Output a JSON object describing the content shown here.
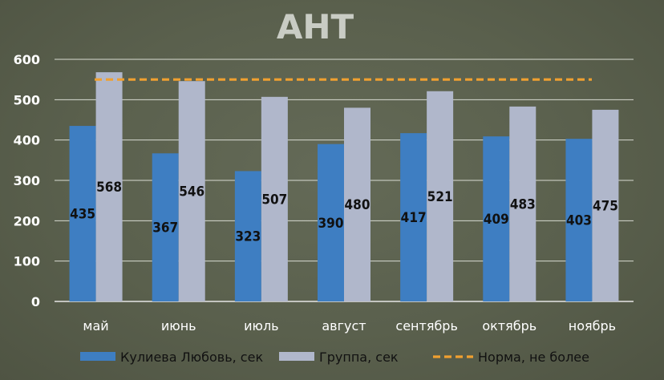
{
  "chart_data": {
    "type": "bar",
    "title": "АНТ",
    "categories": [
      "май",
      "июнь",
      "июль",
      "август",
      "сентябрь",
      "октябрь",
      "ноябрь"
    ],
    "series": [
      {
        "name": "Кулиева Любовь, сек",
        "values": [
          435,
          367,
          323,
          390,
          417,
          409,
          403
        ],
        "color": "#3e7ec2"
      },
      {
        "name": "Группа, сек",
        "values": [
          568,
          546,
          507,
          480,
          521,
          483,
          475
        ],
        "color": "#b0b7cb"
      }
    ],
    "reference_line": {
      "name": "Норма, не более",
      "value": 550,
      "color": "#f0a030",
      "style": "dashed"
    },
    "ylim": [
      0,
      600
    ],
    "yticks": [
      0,
      100,
      200,
      300,
      400,
      500,
      600
    ],
    "grid": true,
    "legend_position": "bottom",
    "data_labels": true
  }
}
